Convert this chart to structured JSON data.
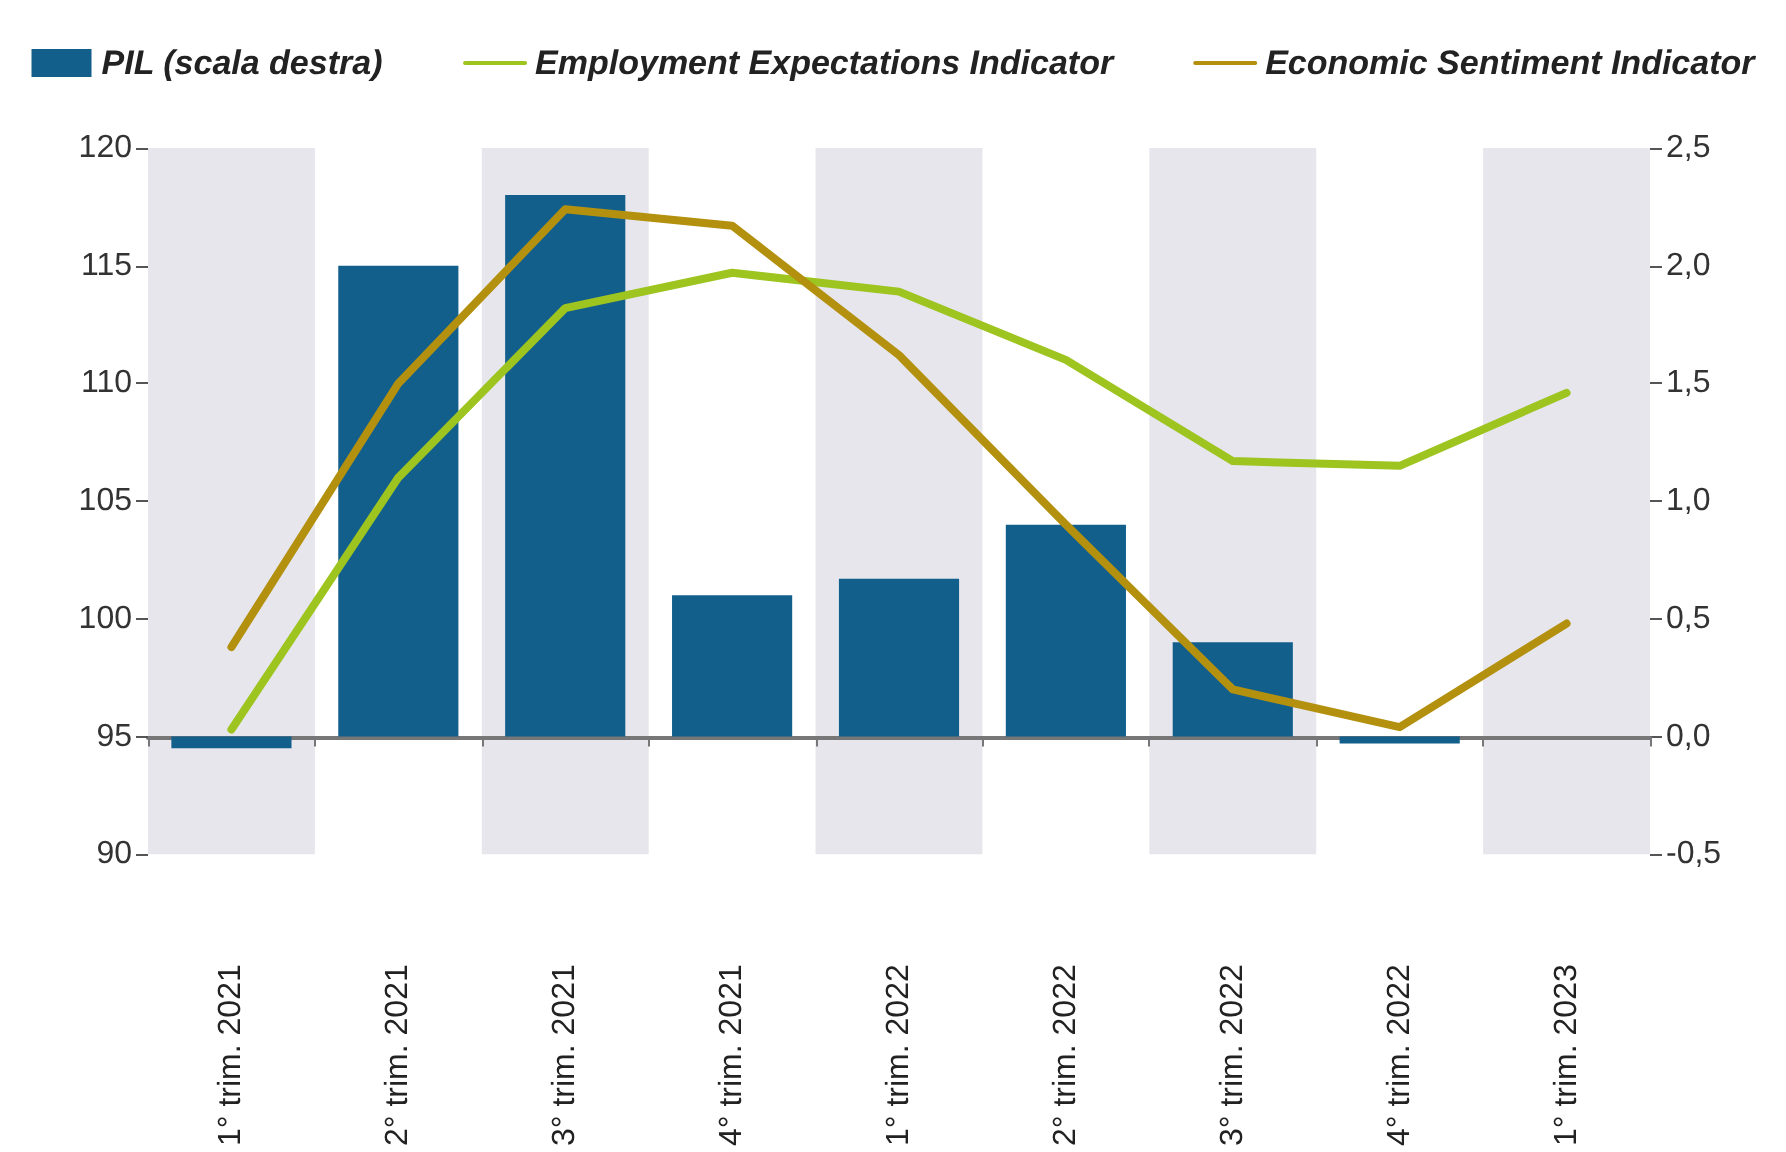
{
  "chart_data": {
    "type": "bar",
    "categories": [
      "1° trim. 2021",
      "2° trim. 2021",
      "3° trim. 2021",
      "4° trim. 2021",
      "1° trim. 2022",
      "2° trim. 2022",
      "3° trim. 2022",
      "4° trim. 2022",
      "1° trim. 2023"
    ],
    "series": [
      {
        "name": "PIL (scala destra)",
        "axis": "y2",
        "color": "#135f8c",
        "values": [
          -0.05,
          2.0,
          2.3,
          0.6,
          0.67,
          0.9,
          0.4,
          -0.03,
          null
        ]
      },
      {
        "name": "Employment Expectations Indicator",
        "type": "line",
        "color": "#9dc41f",
        "values": [
          95.3,
          106.0,
          113.2,
          114.7,
          113.9,
          111.0,
          106.7,
          106.5,
          109.6
        ]
      },
      {
        "name": "Economic Sentiment Indicator",
        "type": "line",
        "color": "#b3900e",
        "values": [
          98.8,
          110.0,
          117.4,
          116.7,
          111.2,
          104.0,
          97.0,
          95.4,
          99.8
        ]
      }
    ],
    "ylim": [
      90,
      120
    ],
    "yticks": [
      90,
      95,
      100,
      105,
      110,
      115,
      120
    ],
    "y2lim": [
      -0.5,
      2.5
    ],
    "y2ticks": [
      {
        "value": -0.5,
        "label": "-0,5"
      },
      {
        "value": 0,
        "label": "0,0"
      },
      {
        "value": 0.5,
        "label": "0,5"
      },
      {
        "value": 1,
        "label": "1,0"
      },
      {
        "value": 1.5,
        "label": "1,5"
      },
      {
        "value": 2,
        "label": "2,0"
      },
      {
        "value": 2.5,
        "label": "2,5"
      }
    ],
    "bands": [
      {
        "axis": "x",
        "from": "1° trim. 2021",
        "to": "1° trim. 2021",
        "color": "#e6e6ec"
      },
      {
        "axis": "x",
        "from": "3° trim. 2021",
        "to": "3° trim. 2021",
        "color": "#e6e6ec"
      },
      {
        "axis": "x",
        "from": "1° trim. 2022",
        "to": "1° trim. 2022",
        "color": "#e6e6ec"
      },
      {
        "axis": "x",
        "from": "3° trim. 2022",
        "to": "3° trim. 2022",
        "color": "#e6e6ec"
      },
      {
        "axis": "x",
        "from": "1° trim. 2023",
        "to": "1° trim. 2023",
        "color": "#e6e6ec"
      }
    ],
    "legend": "top",
    "marker": "none",
    "line_style": "solid"
  }
}
